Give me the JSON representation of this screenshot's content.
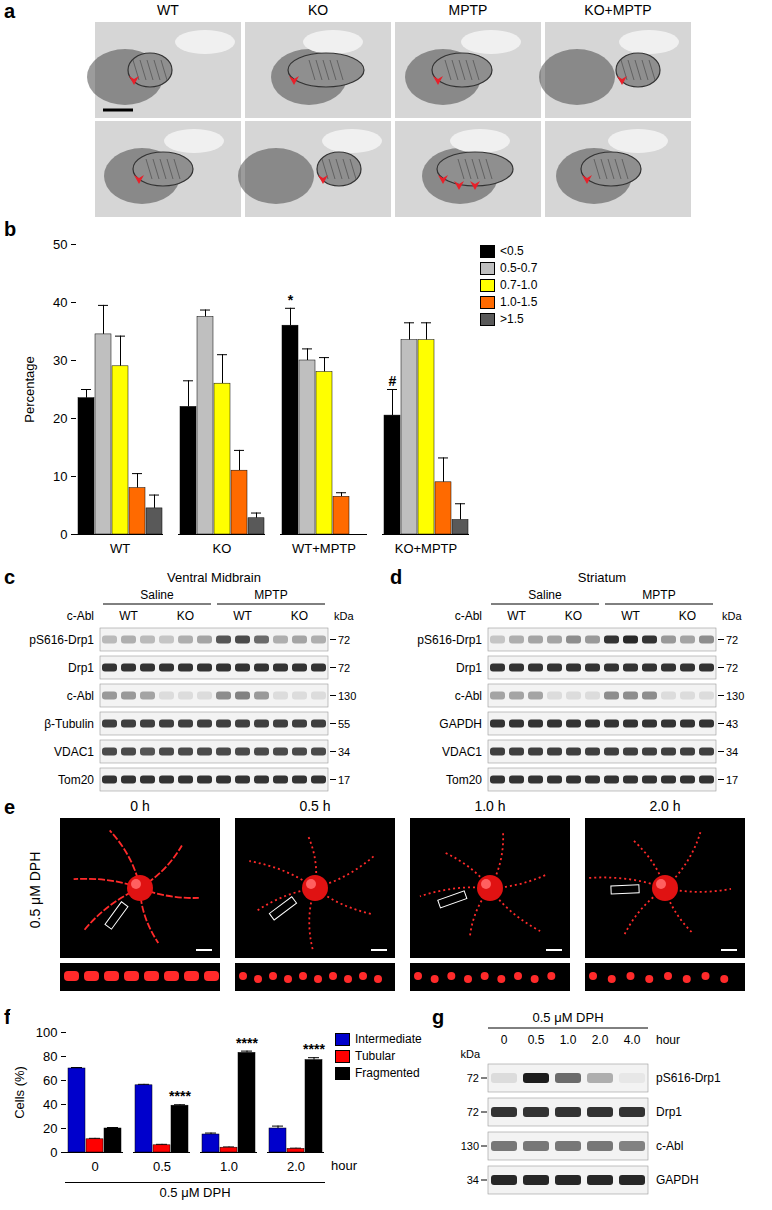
{
  "letters": [
    "a",
    "b",
    "c",
    "d",
    "e",
    "f",
    "g"
  ],
  "micrographs": {
    "columns": [
      "WT",
      "KO",
      "MPTP",
      "KO+MPTP"
    ]
  },
  "chart_data": [
    {
      "type": "bar",
      "categories": [
        "WT",
        "KO",
        "WT+MPTP",
        "KO+MPTP"
      ],
      "ylabel": "Percentage",
      "ylim": [
        0,
        50
      ],
      "yticks": [
        0,
        10,
        20,
        30,
        40,
        50
      ],
      "legend": "right",
      "series": [
        {
          "name": "<0.5",
          "color": "#000000",
          "values": [
            23.5,
            22,
            36,
            20.5
          ],
          "errors": [
            1.5,
            4.5,
            3,
            4.5
          ]
        },
        {
          "name": "0.5-0.7",
          "color": "#bfbfbf",
          "values": [
            34.5,
            37.5,
            30,
            33.5
          ],
          "errors": [
            5,
            1.2,
            2,
            3
          ]
        },
        {
          "name": "0.7-1.0",
          "color": "#ffff00",
          "values": [
            29,
            26,
            28,
            33.5
          ],
          "errors": [
            5.2,
            5,
            2.5,
            3
          ]
        },
        {
          "name": "1.0-1.5",
          "color": "#ff6a00",
          "values": [
            8,
            11,
            6.5,
            9
          ],
          "errors": [
            2.5,
            3.5,
            0.7,
            4.2
          ]
        },
        {
          "name": ">1.5",
          "color": "#595959",
          "values": [
            4.5,
            2.8,
            null,
            2.5
          ],
          "errors": [
            2.3,
            0.9,
            null,
            2.8
          ]
        }
      ],
      "annotations": [
        {
          "text": "*",
          "category": "WT+MPTP",
          "series": "<0.5"
        },
        {
          "text": "#",
          "category": "KO+MPTP",
          "series": "<0.5"
        }
      ]
    },
    {
      "type": "bar",
      "categories": [
        "0",
        "0.5",
        "1.0",
        "2.0"
      ],
      "xlabel": "hour",
      "ylabel": "Cells (%)",
      "ylim": [
        0,
        100
      ],
      "yticks": [
        0,
        20,
        40,
        60,
        80,
        100
      ],
      "legend": "right",
      "series": [
        {
          "name": "Intermediate",
          "color": "#0000cc",
          "values": [
            70,
            56,
            15,
            20
          ],
          "errors": [
            0.8,
            0.8,
            1.2,
            2
          ]
        },
        {
          "name": "Tubular",
          "color": "#ff0000",
          "values": [
            11,
            6,
            4,
            3
          ],
          "errors": [
            0.8,
            0.8,
            0.6,
            0.6
          ]
        },
        {
          "name": "Fragmented",
          "color": "#000000",
          "values": [
            20,
            39,
            83,
            77
          ],
          "errors": [
            0.8,
            0.8,
            1.5,
            2
          ]
        }
      ],
      "annotations": [
        {
          "text": "****",
          "category": "0.5",
          "series": "Fragmented"
        },
        {
          "text": "****",
          "category": "1.0",
          "series": "Fragmented"
        },
        {
          "text": "****",
          "category": "2.0",
          "series": "Fragmented"
        },
        {
          "text": "0.5 μM DPH"
        }
      ]
    }
  ],
  "blots": [
    {
      "title": "Ventral Midbrain",
      "groups": [
        "Saline",
        "MPTP"
      ],
      "genotype_label": "c-Abl",
      "genotypes": [
        "WT",
        "KO",
        "WT",
        "KO"
      ],
      "kda_label": "kDa",
      "rows": [
        {
          "label": "pS616-Drp1",
          "kda": 72,
          "intensity": [
            0.25,
            0.3,
            0.25,
            0.2,
            0.3,
            0.35,
            0.7,
            0.75,
            0.6,
            0.3,
            0.35,
            0.3
          ]
        },
        {
          "label": "Drp1",
          "kda": 72,
          "intensity": [
            0.85,
            0.85,
            0.85,
            0.85,
            0.85,
            0.85,
            0.85,
            0.85,
            0.85,
            0.85,
            0.85,
            0.85
          ]
        },
        {
          "label": "c-Abl",
          "kda": 130,
          "intensity": [
            0.4,
            0.4,
            0.35,
            0.1,
            0.1,
            0.1,
            0.45,
            0.5,
            0.4,
            0.1,
            0.1,
            0.1
          ]
        },
        {
          "label": "β-Tubulin",
          "kda": 55,
          "intensity": [
            0.8,
            0.8,
            0.8,
            0.8,
            0.8,
            0.8,
            0.8,
            0.8,
            0.8,
            0.8,
            0.8,
            0.8
          ]
        },
        {
          "label": "VDAC1",
          "kda": 34,
          "intensity": [
            0.75,
            0.75,
            0.7,
            0.75,
            0.75,
            0.75,
            0.75,
            0.75,
            0.75,
            0.75,
            0.75,
            0.75
          ]
        },
        {
          "label": "Tom20",
          "kda": 17,
          "intensity": [
            0.85,
            0.85,
            0.85,
            0.85,
            0.85,
            0.85,
            0.85,
            0.85,
            0.85,
            0.85,
            0.85,
            0.85
          ]
        }
      ]
    },
    {
      "title": "Striatum",
      "groups": [
        "Saline",
        "MPTP"
      ],
      "genotype_label": "c-Abl",
      "genotypes": [
        "WT",
        "KO",
        "WT",
        "KO"
      ],
      "kda_label": "kDa",
      "rows": [
        {
          "label": "pS616-Drp1",
          "kda": 72,
          "intensity": [
            0.2,
            0.3,
            0.35,
            0.35,
            0.45,
            0.4,
            0.85,
            0.9,
            0.85,
            0.4,
            0.35,
            0.45
          ]
        },
        {
          "label": "Drp1",
          "kda": 72,
          "intensity": [
            0.85,
            0.85,
            0.85,
            0.85,
            0.85,
            0.85,
            0.85,
            0.85,
            0.85,
            0.85,
            0.85,
            0.85
          ]
        },
        {
          "label": "c-Abl",
          "kda": 130,
          "intensity": [
            0.35,
            0.35,
            0.35,
            0.1,
            0.1,
            0.1,
            0.45,
            0.45,
            0.45,
            0.1,
            0.1,
            0.1
          ]
        },
        {
          "label": "GAPDH",
          "kda": 43,
          "intensity": [
            0.85,
            0.85,
            0.85,
            0.85,
            0.85,
            0.85,
            0.85,
            0.85,
            0.85,
            0.85,
            0.85,
            0.85
          ]
        },
        {
          "label": "VDAC1",
          "kda": 34,
          "intensity": [
            0.8,
            0.8,
            0.8,
            0.8,
            0.8,
            0.8,
            0.8,
            0.8,
            0.8,
            0.8,
            0.8,
            0.8
          ]
        },
        {
          "label": "Tom20",
          "kda": 17,
          "intensity": [
            0.85,
            0.85,
            0.85,
            0.85,
            0.85,
            0.85,
            0.85,
            0.85,
            0.85,
            0.85,
            0.85,
            0.85
          ]
        }
      ]
    }
  ],
  "timelapse": {
    "row_label": "0.5 μM DPH",
    "columns": [
      "0 h",
      "0.5 h",
      "1.0 h",
      "2.0 h"
    ]
  },
  "time_blot": {
    "title": "0.5 μM DPH",
    "lanes": [
      "0",
      "0.5",
      "1.0",
      "2.0",
      "4.0"
    ],
    "unit": "hour",
    "kda_label": "kDa",
    "rows": [
      {
        "label": "pS616-Drp1",
        "kda": 72,
        "intensity": [
          0.1,
          0.95,
          0.6,
          0.3,
          0.05
        ]
      },
      {
        "label": "Drp1",
        "kda": 72,
        "intensity": [
          0.85,
          0.85,
          0.85,
          0.85,
          0.85
        ]
      },
      {
        "label": "c-Abl",
        "kda": 130,
        "intensity": [
          0.55,
          0.55,
          0.55,
          0.55,
          0.5
        ]
      },
      {
        "label": "GAPDH",
        "kda": 34,
        "intensity": [
          0.9,
          0.9,
          0.9,
          0.9,
          0.9
        ]
      }
    ]
  }
}
